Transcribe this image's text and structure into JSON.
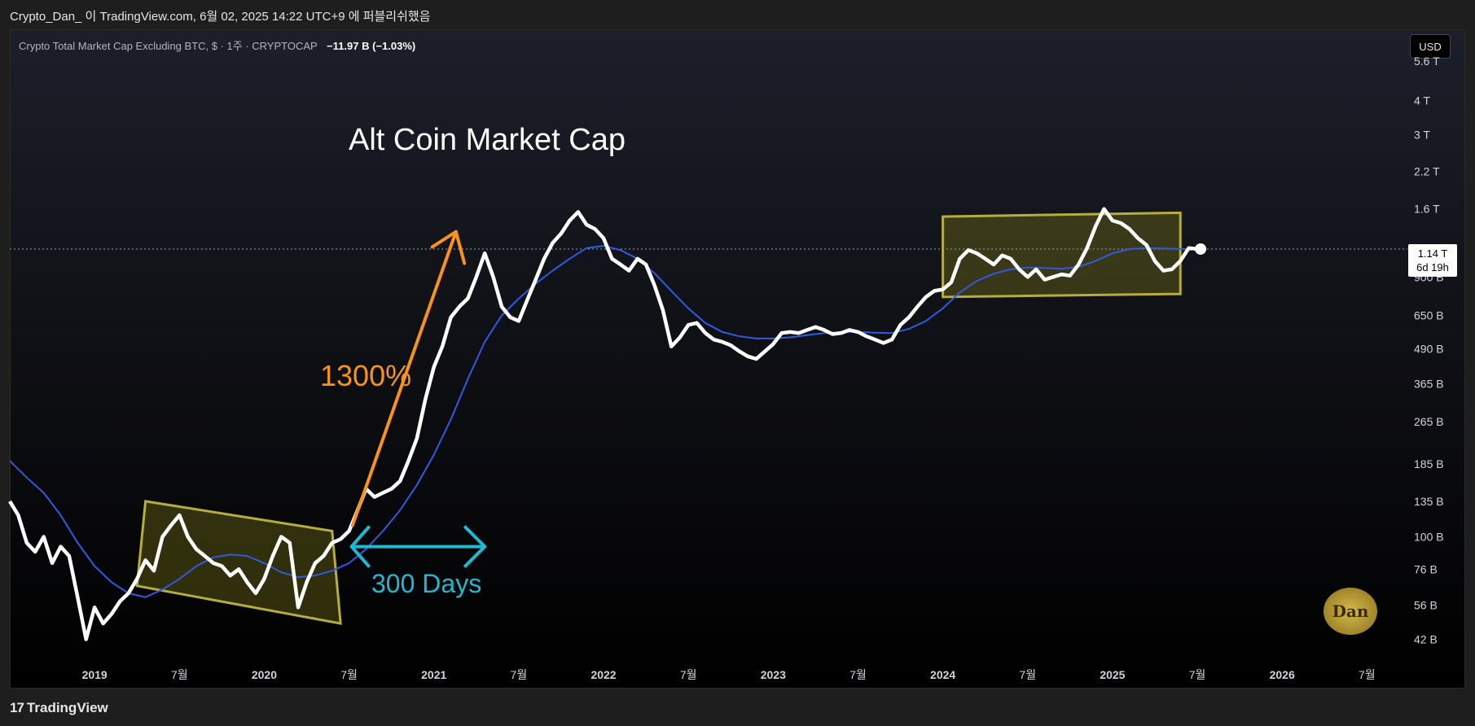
{
  "header": {
    "publish_info": "Crypto_Dan_ 이 TradingView.com, 6월 02, 2025 14:22 UTC+9 에 퍼블리쉬했음"
  },
  "symbol": {
    "description": "Crypto Total Market Cap Excluding BTC, $ · 1주 · CRYPTOCAP",
    "change": "−11.97 B (−1.03%)"
  },
  "currency_button": "USD",
  "price_tag": {
    "value": "1.14 T",
    "countdown": "6d 19h"
  },
  "footer": {
    "brand": "TradingView"
  },
  "watermark": {
    "text": "Dan"
  },
  "colors": {
    "price_line": "#ffffff",
    "ma_line": "#2f5be0",
    "arrow_growth": "#f7931a",
    "arrow_days": "#22b8cf",
    "box_fill": "rgba(120,115,20,0.38)",
    "box_border": "#b5ad3c"
  },
  "annotations": {
    "title": "Alt Coin Market Cap",
    "growth": "1300%",
    "duration": "300 Days"
  },
  "chart_data": {
    "type": "line",
    "scale": "log",
    "ylim": [
      38,
      6200
    ],
    "y_ticks": [
      {
        "label": "5.6 T",
        "value": 5600
      },
      {
        "label": "4 T",
        "value": 4000
      },
      {
        "label": "3 T",
        "value": 3000
      },
      {
        "label": "2.2 T",
        "value": 2200
      },
      {
        "label": "1.6 T",
        "value": 1600
      },
      {
        "label": "900 B",
        "value": 900
      },
      {
        "label": "650 B",
        "value": 650
      },
      {
        "label": "490 B",
        "value": 490
      },
      {
        "label": "365 B",
        "value": 365
      },
      {
        "label": "265 B",
        "value": 265
      },
      {
        "label": "185 B",
        "value": 185
      },
      {
        "label": "135 B",
        "value": 135
      },
      {
        "label": "100 B",
        "value": 100
      },
      {
        "label": "76 B",
        "value": 76
      },
      {
        "label": "56 B",
        "value": 56
      },
      {
        "label": "42 B",
        "value": 42
      }
    ],
    "x_ticks": [
      {
        "label": "2019",
        "t": 2019.0,
        "bold": true
      },
      {
        "label": "7월",
        "t": 2019.5,
        "bold": false
      },
      {
        "label": "2020",
        "t": 2020.0,
        "bold": true
      },
      {
        "label": "7월",
        "t": 2020.5,
        "bold": false
      },
      {
        "label": "2021",
        "t": 2021.0,
        "bold": true
      },
      {
        "label": "7월",
        "t": 2021.5,
        "bold": false
      },
      {
        "label": "2022",
        "t": 2022.0,
        "bold": true
      },
      {
        "label": "7월",
        "t": 2022.5,
        "bold": false
      },
      {
        "label": "2023",
        "t": 2023.0,
        "bold": true
      },
      {
        "label": "7월",
        "t": 2023.5,
        "bold": false
      },
      {
        "label": "2024",
        "t": 2024.0,
        "bold": true
      },
      {
        "label": "7월",
        "t": 2024.5,
        "bold": false
      },
      {
        "label": "2025",
        "t": 2025.0,
        "bold": true
      },
      {
        "label": "7월",
        "t": 2025.5,
        "bold": false
      },
      {
        "label": "2026",
        "t": 2026.0,
        "bold": true
      },
      {
        "label": "7월",
        "t": 2026.5,
        "bold": false
      }
    ],
    "xlim": [
      2018.5,
      2026.7
    ],
    "last_value": 1140,
    "series": [
      {
        "name": "",
        "style": "price",
        "points": [
          [
            2018.5,
            135
          ],
          [
            2018.55,
            120
          ],
          [
            2018.6,
            95
          ],
          [
            2018.65,
            88
          ],
          [
            2018.7,
            100
          ],
          [
            2018.75,
            80
          ],
          [
            2018.8,
            92
          ],
          [
            2018.85,
            85
          ],
          [
            2018.9,
            60
          ],
          [
            2018.95,
            42
          ],
          [
            2019.0,
            55
          ],
          [
            2019.05,
            48
          ],
          [
            2019.1,
            52
          ],
          [
            2019.15,
            58
          ],
          [
            2019.2,
            62
          ],
          [
            2019.25,
            70
          ],
          [
            2019.3,
            82
          ],
          [
            2019.35,
            75
          ],
          [
            2019.4,
            100
          ],
          [
            2019.45,
            110
          ],
          [
            2019.5,
            120
          ],
          [
            2019.55,
            100
          ],
          [
            2019.6,
            90
          ],
          [
            2019.65,
            85
          ],
          [
            2019.7,
            80
          ],
          [
            2019.75,
            78
          ],
          [
            2019.8,
            72
          ],
          [
            2019.85,
            76
          ],
          [
            2019.9,
            68
          ],
          [
            2019.95,
            62
          ],
          [
            2020.0,
            70
          ],
          [
            2020.05,
            85
          ],
          [
            2020.1,
            100
          ],
          [
            2020.15,
            95
          ],
          [
            2020.2,
            55
          ],
          [
            2020.25,
            68
          ],
          [
            2020.3,
            80
          ],
          [
            2020.35,
            85
          ],
          [
            2020.4,
            95
          ],
          [
            2020.45,
            98
          ],
          [
            2020.5,
            105
          ],
          [
            2020.55,
            125
          ],
          [
            2020.6,
            150
          ],
          [
            2020.65,
            140
          ],
          [
            2020.7,
            145
          ],
          [
            2020.75,
            150
          ],
          [
            2020.8,
            160
          ],
          [
            2020.85,
            190
          ],
          [
            2020.9,
            230
          ],
          [
            2020.95,
            320
          ],
          [
            2021.0,
            420
          ],
          [
            2021.05,
            500
          ],
          [
            2021.1,
            640
          ],
          [
            2021.15,
            700
          ],
          [
            2021.2,
            750
          ],
          [
            2021.25,
            900
          ],
          [
            2021.3,
            1100
          ],
          [
            2021.35,
            900
          ],
          [
            2021.4,
            700
          ],
          [
            2021.45,
            640
          ],
          [
            2021.5,
            620
          ],
          [
            2021.55,
            740
          ],
          [
            2021.6,
            880
          ],
          [
            2021.65,
            1050
          ],
          [
            2021.7,
            1200
          ],
          [
            2021.75,
            1300
          ],
          [
            2021.8,
            1450
          ],
          [
            2021.85,
            1560
          ],
          [
            2021.9,
            1400
          ],
          [
            2021.95,
            1350
          ],
          [
            2022.0,
            1250
          ],
          [
            2022.05,
            1050
          ],
          [
            2022.1,
            1000
          ],
          [
            2022.15,
            950
          ],
          [
            2022.2,
            1050
          ],
          [
            2022.25,
            1000
          ],
          [
            2022.3,
            840
          ],
          [
            2022.35,
            680
          ],
          [
            2022.4,
            500
          ],
          [
            2022.45,
            540
          ],
          [
            2022.5,
            600
          ],
          [
            2022.55,
            610
          ],
          [
            2022.6,
            560
          ],
          [
            2022.65,
            530
          ],
          [
            2022.7,
            520
          ],
          [
            2022.75,
            505
          ],
          [
            2022.8,
            480
          ],
          [
            2022.85,
            460
          ],
          [
            2022.9,
            450
          ],
          [
            2023.0,
            510
          ],
          [
            2023.05,
            560
          ],
          [
            2023.1,
            565
          ],
          [
            2023.15,
            560
          ],
          [
            2023.2,
            575
          ],
          [
            2023.25,
            590
          ],
          [
            2023.3,
            575
          ],
          [
            2023.35,
            555
          ],
          [
            2023.4,
            560
          ],
          [
            2023.45,
            575
          ],
          [
            2023.5,
            565
          ],
          [
            2023.55,
            545
          ],
          [
            2023.6,
            530
          ],
          [
            2023.65,
            515
          ],
          [
            2023.7,
            530
          ],
          [
            2023.75,
            600
          ],
          [
            2023.8,
            640
          ],
          [
            2023.85,
            700
          ],
          [
            2023.9,
            760
          ],
          [
            2023.95,
            800
          ],
          [
            2024.0,
            810
          ],
          [
            2024.05,
            860
          ],
          [
            2024.1,
            1050
          ],
          [
            2024.15,
            1130
          ],
          [
            2024.2,
            1100
          ],
          [
            2024.25,
            1050
          ],
          [
            2024.3,
            1000
          ],
          [
            2024.35,
            1080
          ],
          [
            2024.4,
            1050
          ],
          [
            2024.45,
            960
          ],
          [
            2024.5,
            900
          ],
          [
            2024.55,
            960
          ],
          [
            2024.6,
            880
          ],
          [
            2024.65,
            900
          ],
          [
            2024.7,
            920
          ],
          [
            2024.75,
            910
          ],
          [
            2024.8,
            1000
          ],
          [
            2024.85,
            1150
          ],
          [
            2024.9,
            1380
          ],
          [
            2024.95,
            1600
          ],
          [
            2025.0,
            1450
          ],
          [
            2025.05,
            1420
          ],
          [
            2025.1,
            1350
          ],
          [
            2025.15,
            1250
          ],
          [
            2025.2,
            1180
          ],
          [
            2025.25,
            1030
          ],
          [
            2025.3,
            950
          ],
          [
            2025.35,
            960
          ],
          [
            2025.4,
            1030
          ],
          [
            2025.45,
            1150
          ],
          [
            2025.5,
            1140
          ]
        ]
      },
      {
        "name": "",
        "style": "ma",
        "points": [
          [
            2018.5,
            190
          ],
          [
            2018.6,
            165
          ],
          [
            2018.7,
            145
          ],
          [
            2018.8,
            120
          ],
          [
            2018.9,
            95
          ],
          [
            2019.0,
            78
          ],
          [
            2019.1,
            68
          ],
          [
            2019.2,
            62
          ],
          [
            2019.3,
            60
          ],
          [
            2019.4,
            64
          ],
          [
            2019.5,
            70
          ],
          [
            2019.6,
            78
          ],
          [
            2019.7,
            84
          ],
          [
            2019.8,
            86
          ],
          [
            2019.9,
            85
          ],
          [
            2020.0,
            80
          ],
          [
            2020.1,
            74
          ],
          [
            2020.2,
            71
          ],
          [
            2020.3,
            72
          ],
          [
            2020.4,
            75
          ],
          [
            2020.5,
            80
          ],
          [
            2020.6,
            90
          ],
          [
            2020.7,
            105
          ],
          [
            2020.8,
            125
          ],
          [
            2020.9,
            155
          ],
          [
            2021.0,
            200
          ],
          [
            2021.1,
            270
          ],
          [
            2021.2,
            380
          ],
          [
            2021.3,
            520
          ],
          [
            2021.4,
            650
          ],
          [
            2021.5,
            750
          ],
          [
            2021.6,
            850
          ],
          [
            2021.7,
            950
          ],
          [
            2021.8,
            1050
          ],
          [
            2021.9,
            1150
          ],
          [
            2022.0,
            1170
          ],
          [
            2022.1,
            1130
          ],
          [
            2022.2,
            1050
          ],
          [
            2022.3,
            930
          ],
          [
            2022.4,
            800
          ],
          [
            2022.5,
            690
          ],
          [
            2022.6,
            610
          ],
          [
            2022.7,
            565
          ],
          [
            2022.8,
            545
          ],
          [
            2022.9,
            535
          ],
          [
            2023.0,
            535
          ],
          [
            2023.1,
            540
          ],
          [
            2023.2,
            550
          ],
          [
            2023.3,
            560
          ],
          [
            2023.4,
            565
          ],
          [
            2023.5,
            565
          ],
          [
            2023.6,
            562
          ],
          [
            2023.7,
            560
          ],
          [
            2023.8,
            580
          ],
          [
            2023.9,
            620
          ],
          [
            2024.0,
            690
          ],
          [
            2024.1,
            790
          ],
          [
            2024.2,
            870
          ],
          [
            2024.3,
            925
          ],
          [
            2024.4,
            960
          ],
          [
            2024.5,
            975
          ],
          [
            2024.6,
            970
          ],
          [
            2024.7,
            965
          ],
          [
            2024.8,
            980
          ],
          [
            2024.9,
            1030
          ],
          [
            2025.0,
            1100
          ],
          [
            2025.1,
            1140
          ],
          [
            2025.2,
            1150
          ],
          [
            2025.3,
            1145
          ],
          [
            2025.4,
            1140
          ],
          [
            2025.5,
            1140
          ]
        ]
      }
    ]
  }
}
